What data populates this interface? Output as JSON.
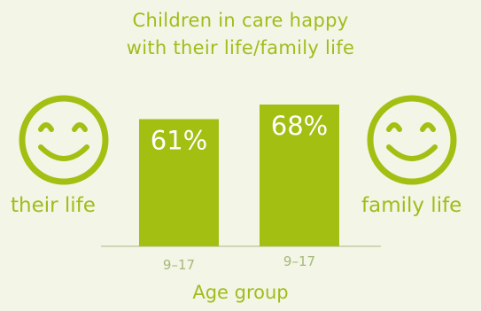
{
  "title_lines": [
    "Children in care happy",
    "with their life/family life"
  ],
  "colors": {
    "accent": "#a2bf12",
    "background": "#f3f5e6",
    "text": "#9fbd1a",
    "bar_text": "#ffffff",
    "tick": "#a6b87a"
  },
  "icons": {
    "left": "smiley-face-icon",
    "right": "smiley-face-icon"
  },
  "chart_data": {
    "type": "bar",
    "title": "Children in care happy with their life/family life",
    "xlabel": "Age group",
    "ylabel": "",
    "ylim": [
      0,
      100
    ],
    "grid": false,
    "categories": [
      "9–17",
      "9–17"
    ],
    "series": [
      {
        "values": [
          61,
          68
        ],
        "labels": [
          "61%",
          "68%"
        ]
      }
    ],
    "side_labels": {
      "left": "their life",
      "right": "family life"
    }
  }
}
